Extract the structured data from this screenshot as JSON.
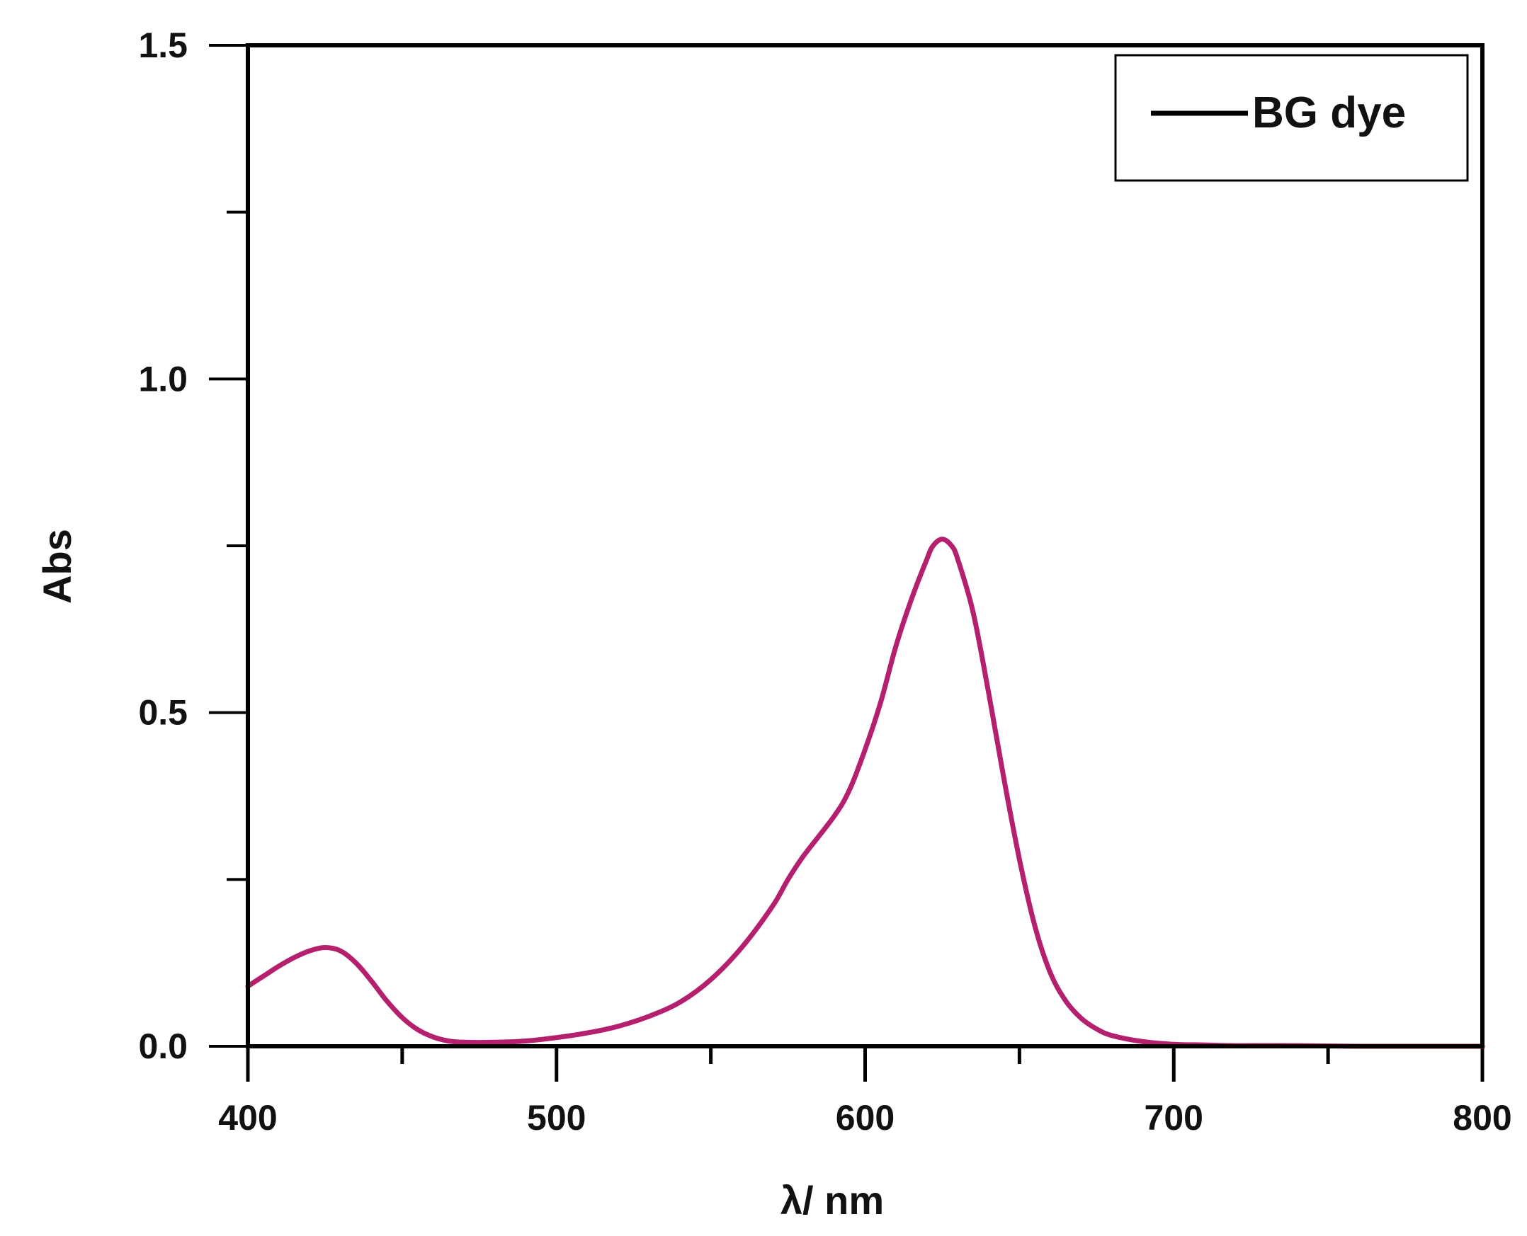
{
  "chart_data": {
    "type": "line",
    "xlabel": "λ/ nm",
    "ylabel": "Abs",
    "xlim": [
      400,
      800
    ],
    "ylim": [
      0,
      1.5
    ],
    "x_ticks": [
      400,
      500,
      600,
      700,
      800
    ],
    "x_tick_labels": [
      "400",
      "500",
      "600",
      "700",
      "800"
    ],
    "x_minor_ticks": [
      450,
      550,
      650,
      750
    ],
    "y_ticks": [
      0.0,
      0.5,
      1.0,
      1.5
    ],
    "y_tick_labels": [
      "0.0",
      "0.5",
      "1.0",
      "1.5"
    ],
    "y_minor_ticks": [
      0.25,
      0.75,
      1.25
    ],
    "grid": false,
    "legend": {
      "position": "top-right",
      "entries": [
        {
          "label": "BG dye",
          "swatch_color": "#000000"
        }
      ]
    },
    "series": [
      {
        "name": "BG dye",
        "color": "#b5206e",
        "x": [
          400,
          405,
          410,
          415,
          420,
          425,
          430,
          435,
          440,
          445,
          450,
          455,
          460,
          465,
          470,
          480,
          490,
          500,
          510,
          520,
          530,
          540,
          550,
          560,
          570,
          575,
          580,
          590,
          595,
          600,
          605,
          610,
          615,
          620,
          622,
          625,
          628,
          630,
          635,
          640,
          645,
          650,
          655,
          660,
          665,
          670,
          675,
          680,
          690,
          700,
          710,
          720,
          740,
          760,
          780,
          800
        ],
        "y": [
          0.09,
          0.105,
          0.12,
          0.133,
          0.143,
          0.148,
          0.143,
          0.125,
          0.098,
          0.068,
          0.043,
          0.025,
          0.014,
          0.008,
          0.006,
          0.006,
          0.008,
          0.013,
          0.02,
          0.03,
          0.045,
          0.066,
          0.1,
          0.148,
          0.21,
          0.25,
          0.285,
          0.345,
          0.385,
          0.445,
          0.515,
          0.6,
          0.67,
          0.73,
          0.75,
          0.76,
          0.75,
          0.73,
          0.65,
          0.53,
          0.4,
          0.28,
          0.18,
          0.11,
          0.068,
          0.042,
          0.026,
          0.016,
          0.007,
          0.003,
          0.002,
          0.001,
          0.001,
          0.0,
          0.0,
          0.0
        ]
      }
    ]
  }
}
